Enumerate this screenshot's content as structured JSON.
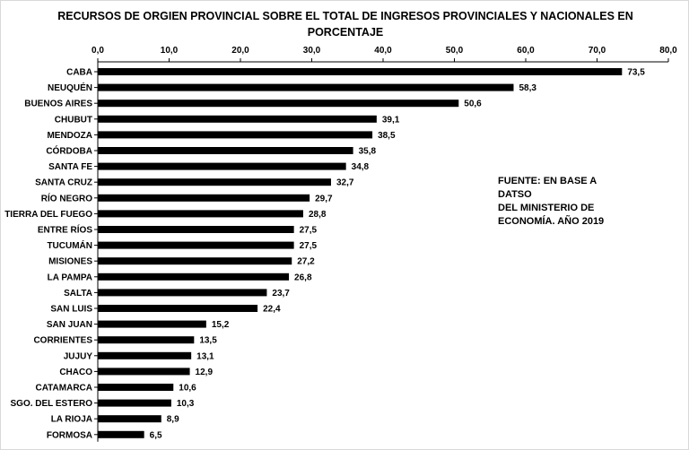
{
  "title": "RECURSOS DE ORGIEN PROVINCIAL SOBRE EL TOTAL DE INGRESOS PROVINCIALES Y NACIONALES EN PORCENTAJE",
  "note_lines": [
    "FUENTE: EN BASE A DATSO",
    "DEL MINISTERIO DE",
    "ECONOMÍA. AÑO 2019"
  ],
  "chart_data": {
    "type": "bar",
    "orientation": "horizontal",
    "title": "RECURSOS DE ORGIEN PROVINCIAL SOBRE EL TOTAL DE INGRESOS PROVINCIALES Y NACIONALES EN PORCENTAJE",
    "xlabel": "",
    "ylabel": "",
    "xlim": [
      0,
      80
    ],
    "axis_position": "top",
    "ticks": [
      "0,0",
      "10,0",
      "20,0",
      "30,0",
      "40,0",
      "50,0",
      "60,0",
      "70,0",
      "80,0"
    ],
    "grid": false,
    "bar_color": "#000000",
    "categories": [
      "CABA",
      "NEUQUÉN",
      "BUENOS AIRES",
      "CHUBUT",
      "MENDOZA",
      "CÓRDOBA",
      "SANTA FE",
      "SANTA CRUZ",
      "RÍO NEGRO",
      "TIERRA DEL FUEGO",
      "ENTRE RÍOS",
      "TUCUMÁN",
      "MISIONES",
      "LA PAMPA",
      "SALTA",
      "SAN LUIS",
      "SAN JUAN",
      "CORRIENTES",
      "JUJUY",
      "CHACO",
      "CATAMARCA",
      "SGO. DEL ESTERO",
      "LA RIOJA",
      "FORMOSA"
    ],
    "values": [
      73.5,
      58.3,
      50.6,
      39.1,
      38.5,
      35.8,
      34.8,
      32.7,
      29.7,
      28.8,
      27.5,
      27.5,
      27.2,
      26.8,
      23.7,
      22.4,
      15.2,
      13.5,
      13.1,
      12.9,
      10.6,
      10.3,
      8.9,
      6.5
    ],
    "value_labels": [
      "73,5",
      "58,3",
      "50,6",
      "39,1",
      "38,5",
      "35,8",
      "34,8",
      "32,7",
      "29,7",
      "28,8",
      "27,5",
      "27,5",
      "27,2",
      "26,8",
      "23,7",
      "22,4",
      "15,2",
      "13,5",
      "13,1",
      "12,9",
      "10,6",
      "10,3",
      "8,9",
      "6,5"
    ]
  }
}
